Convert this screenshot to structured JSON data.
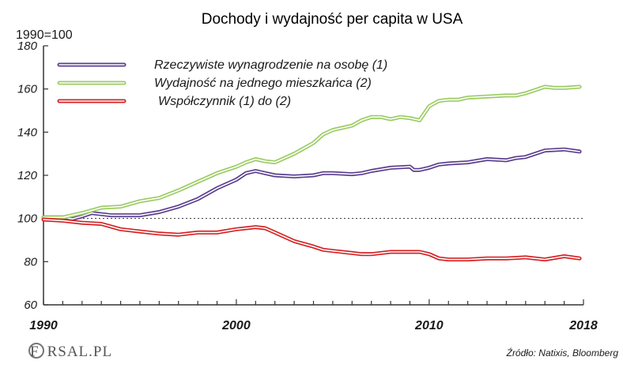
{
  "chart_data": {
    "type": "line",
    "title": "Dochody i wydajność per capita w USA",
    "unit_label": "1990=100",
    "source": "Źródło: Natixis, Bloomberg",
    "logo_text": "FORSAL.PL",
    "xlim": [
      1990,
      2018
    ],
    "ylim": [
      60,
      180
    ],
    "x_ticks": [
      1990,
      2000,
      2010,
      2018
    ],
    "y_ticks": [
      60,
      80,
      100,
      120,
      140,
      160,
      180
    ],
    "reference_line": 100,
    "legend_position": "top-left",
    "grid": false,
    "series": [
      {
        "name": "Rzeczywiste wynagrodzenie na osobę (1)",
        "color": "#5b3f8f",
        "x": [
          1990,
          1991,
          1991.5,
          1992,
          1992.5,
          1993,
          1993.5,
          1994,
          1995,
          1996,
          1997,
          1998,
          1999,
          2000,
          2000.5,
          2001,
          2001.5,
          2002,
          2003,
          2004,
          2004.5,
          2005,
          2006,
          2006.5,
          2007,
          2008,
          2009,
          2009.2,
          2009.5,
          2010,
          2010.5,
          2011,
          2012,
          2013,
          2014,
          2014.5,
          2015,
          2016,
          2017,
          2017.8
        ],
        "y": [
          100.5,
          100.5,
          99.8,
          101,
          102.5,
          102,
          101.5,
          101.5,
          101.5,
          103,
          105.5,
          109,
          114,
          118,
          121,
          122,
          121,
          120,
          119.5,
          120,
          121,
          121,
          120.5,
          121,
          122,
          123.5,
          124,
          122.5,
          122.5,
          123.5,
          125,
          125.5,
          126,
          127.5,
          127,
          128,
          128.5,
          131.5,
          132,
          131
        ]
      },
      {
        "name": "Wydajność na jednego mieszkańca (2)",
        "color": "#9ccc65",
        "x": [
          1990,
          1991,
          1992,
          1993,
          1994,
          1995,
          1996,
          1997,
          1998,
          1999,
          2000,
          2000.5,
          2001,
          2001.5,
          2002,
          2003,
          2004,
          2004.5,
          2005,
          2006,
          2006.5,
          2007,
          2007.5,
          2008,
          2008.5,
          2009,
          2009.5,
          2010,
          2010.5,
          2011,
          2011.5,
          2012,
          2013,
          2014,
          2014.5,
          2015,
          2016,
          2016.5,
          2017,
          2017.8
        ],
        "y": [
          100.5,
          100.5,
          102.5,
          105,
          105.5,
          108,
          109.5,
          113,
          117,
          121,
          124,
          126,
          127.5,
          126.5,
          126,
          130,
          135,
          139,
          141,
          143,
          145.5,
          147,
          147,
          146,
          147,
          146.5,
          145.5,
          152,
          154.5,
          155,
          155,
          156,
          156.5,
          157,
          157,
          158,
          161,
          160.5,
          160.5,
          161
        ]
      },
      {
        "name": "Współczynnik (1) do (2)",
        "color": "#d42426",
        "x": [
          1990,
          1991,
          1992,
          1993,
          1994,
          1995,
          1996,
          1997,
          1998,
          1999,
          2000,
          2000.5,
          2001,
          2001.5,
          2002,
          2003,
          2004,
          2004.5,
          2005,
          2006,
          2006.5,
          2007,
          2008,
          2009,
          2009.2,
          2009.5,
          2010,
          2010.5,
          2011,
          2012,
          2013,
          2014,
          2015,
          2016,
          2017,
          2017.8
        ],
        "y": [
          99.5,
          99,
          98,
          97.5,
          95,
          94,
          93,
          92.5,
          93.5,
          93.5,
          95,
          95.5,
          96,
          95.5,
          93.5,
          89.5,
          87,
          85.5,
          85,
          84,
          83.5,
          83.5,
          84.5,
          84.5,
          84.5,
          84.5,
          83.5,
          81.5,
          81,
          81,
          81.5,
          81.5,
          82,
          81,
          82.5,
          81.5
        ]
      }
    ]
  }
}
